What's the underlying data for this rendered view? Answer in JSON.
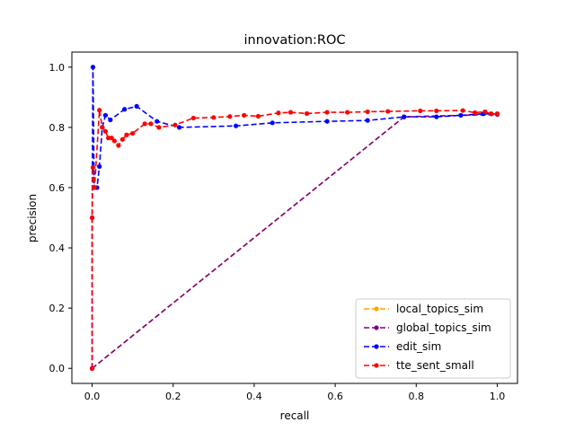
{
  "chart_data": {
    "type": "line",
    "title": "innovation:ROC",
    "xlabel": "recall",
    "ylabel": "precision",
    "xlim": [
      -0.05,
      1.05
    ],
    "ylim": [
      -0.05,
      1.05
    ],
    "xticks": [
      0.0,
      0.2,
      0.4,
      0.6,
      0.8,
      1.0
    ],
    "yticks": [
      0.0,
      0.2,
      0.4,
      0.6,
      0.8,
      1.0
    ],
    "tick_labels_x": [
      "0.0",
      "0.2",
      "0.4",
      "0.6",
      "0.8",
      "1.0"
    ],
    "tick_labels_y": [
      "0.0",
      "0.2",
      "0.4",
      "0.6",
      "0.8",
      "1.0"
    ],
    "grid": false,
    "legend_position": "lower-right",
    "series": [
      {
        "name": "local_topics_sim",
        "color": "#ffa500",
        "x": [
          0.0,
          0.77,
          1.0
        ],
        "y": [
          0.0,
          0.835,
          0.843
        ]
      },
      {
        "name": "global_topics_sim",
        "color": "#800080",
        "x": [
          0.0,
          0.77,
          1.0
        ],
        "y": [
          0.0,
          0.835,
          0.843
        ]
      },
      {
        "name": "edit_sim",
        "color": "#0000ff",
        "x": [
          0.0,
          0.0,
          0.002,
          0.005,
          0.012,
          0.018,
          0.025,
          0.033,
          0.045,
          0.08,
          0.11,
          0.16,
          0.215,
          0.355,
          0.445,
          0.58,
          0.68,
          0.77,
          0.85,
          0.91,
          0.965,
          0.985,
          1.0
        ],
        "y": [
          0.0,
          0.5,
          1.0,
          0.6,
          0.6,
          0.67,
          0.8,
          0.84,
          0.825,
          0.86,
          0.87,
          0.82,
          0.8,
          0.805,
          0.815,
          0.82,
          0.823,
          0.835,
          0.835,
          0.84,
          0.845,
          0.845,
          0.845
        ]
      },
      {
        "name": "tte_sent_small",
        "color": "#ff0000",
        "x": [
          0.0,
          0.0,
          0.002,
          0.006,
          0.018,
          0.025,
          0.033,
          0.04,
          0.048,
          0.055,
          0.065,
          0.075,
          0.085,
          0.1,
          0.13,
          0.145,
          0.165,
          0.205,
          0.25,
          0.3,
          0.34,
          0.375,
          0.41,
          0.46,
          0.49,
          0.53,
          0.58,
          0.63,
          0.68,
          0.73,
          0.81,
          0.85,
          0.915,
          0.945,
          0.97,
          0.985,
          1.0
        ],
        "y": [
          0.0,
          0.5,
          0.667,
          0.6,
          0.857,
          0.8,
          0.787,
          0.765,
          0.765,
          0.755,
          0.74,
          0.76,
          0.775,
          0.78,
          0.812,
          0.812,
          0.8,
          0.808,
          0.831,
          0.833,
          0.836,
          0.84,
          0.837,
          0.848,
          0.85,
          0.846,
          0.85,
          0.85,
          0.852,
          0.853,
          0.855,
          0.855,
          0.856,
          0.849,
          0.852,
          0.845,
          0.845
        ]
      }
    ]
  }
}
